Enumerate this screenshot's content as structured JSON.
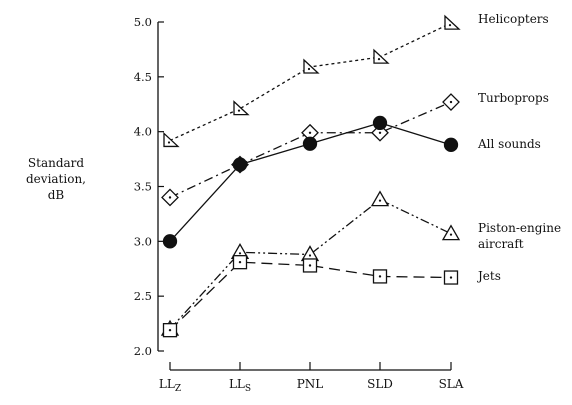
{
  "chart_data": {
    "type": "line",
    "title": "",
    "ylabel": [
      "Standard",
      "deviation,",
      "dB"
    ],
    "xlabel": "",
    "categories": [
      {
        "main": "LL",
        "sub": "Z"
      },
      {
        "main": "LL",
        "sub": "S"
      },
      {
        "main": "PNL",
        "sub": ""
      },
      {
        "main": "SLD",
        "sub": ""
      },
      {
        "main": "SLA",
        "sub": ""
      }
    ],
    "ylim": [
      2.0,
      5.0
    ],
    "yticks": [
      "2.0",
      "2.5",
      "3.0",
      "3.5",
      "4.0",
      "4.5",
      "5.0"
    ],
    "grid": false,
    "series": [
      {
        "name": "Helicopters",
        "values": [
          3.92,
          4.21,
          4.59,
          4.68,
          4.99
        ],
        "marker": "triangle-right",
        "dash": "short"
      },
      {
        "name": "Turboprops",
        "values": [
          3.4,
          3.7,
          3.99,
          3.99,
          4.27
        ],
        "marker": "diamond-dot",
        "dash": "dash-dot"
      },
      {
        "name": "All sounds",
        "values": [
          3.0,
          3.7,
          3.89,
          4.08,
          3.88
        ],
        "marker": "filled-circle",
        "dash": "solid"
      },
      {
        "name": [
          "Piston-engine",
          "aircraft"
        ],
        "values": [
          2.2,
          2.9,
          2.88,
          3.38,
          3.07
        ],
        "marker": "triangle-up",
        "dash": "dash-dot-dot"
      },
      {
        "name": "Jets",
        "values": [
          2.19,
          2.81,
          2.78,
          2.68,
          2.67
        ],
        "marker": "square-dot",
        "dash": "long"
      }
    ],
    "colors": {
      "ink": "#111111",
      "background": "#ffffff"
    }
  }
}
